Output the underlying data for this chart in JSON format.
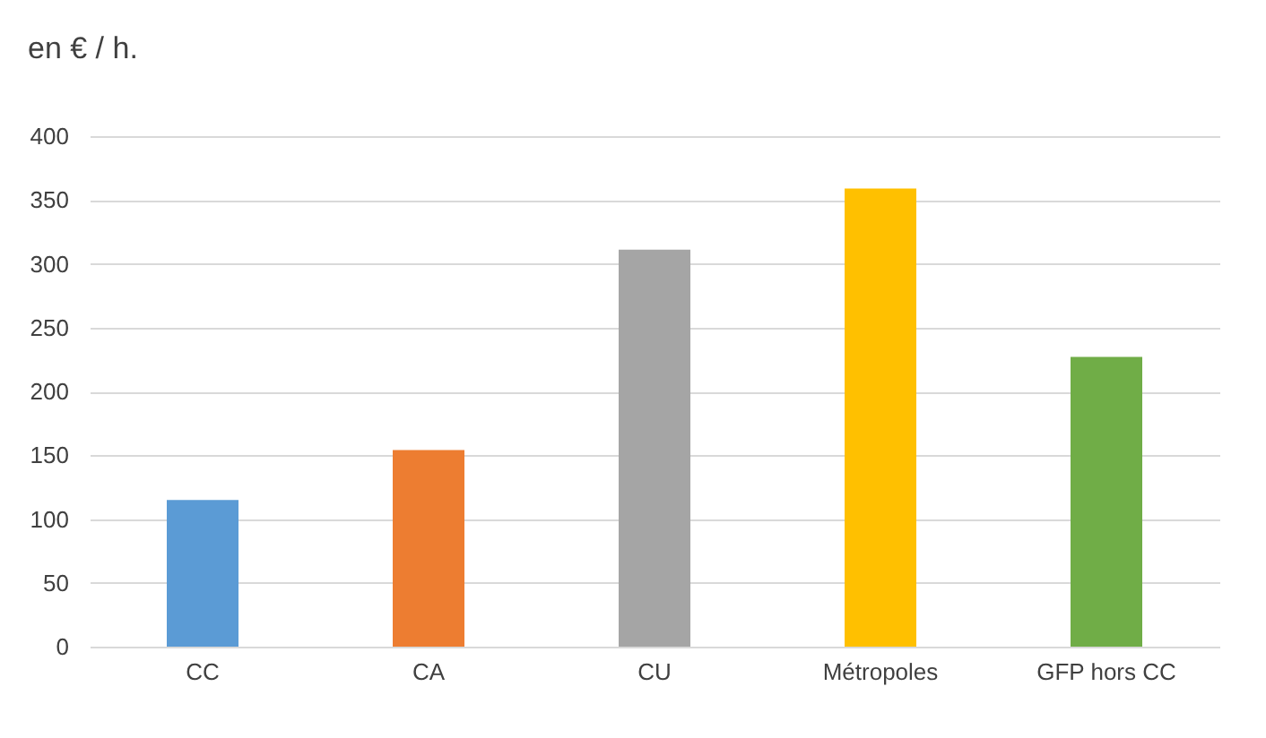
{
  "chart_data": {
    "type": "bar",
    "ylabel": "en € / h.",
    "categories": [
      "CC",
      "CA",
      "CU",
      "Métropoles",
      "GFP hors CC"
    ],
    "values": [
      115,
      154,
      311,
      359,
      227
    ],
    "colors": [
      "#5b9bd5",
      "#ed7d31",
      "#a5a5a5",
      "#ffc000",
      "#70ad47"
    ],
    "ylim": [
      0,
      400
    ],
    "yticks": [
      0,
      50,
      100,
      150,
      200,
      250,
      300,
      350,
      400
    ],
    "grid": "y"
  }
}
